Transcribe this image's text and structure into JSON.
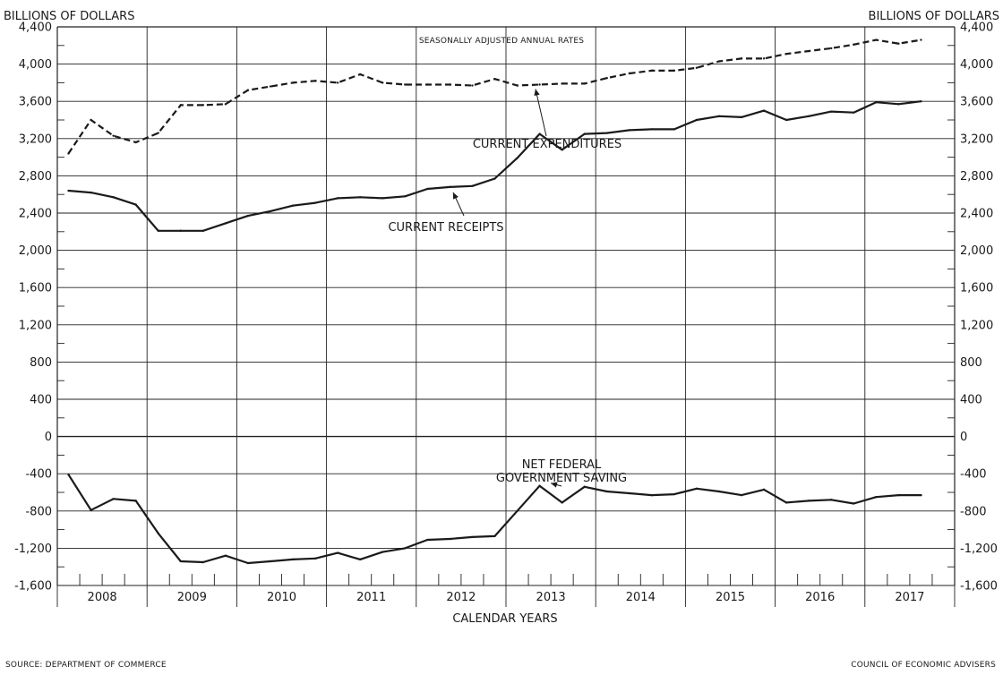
{
  "chart_data": {
    "type": "line",
    "left_axis_title": "BILLIONS OF DOLLARS",
    "right_axis_title": "BILLIONS OF DOLLARS",
    "note": "SEASONALLY ADJUSTED ANNUAL RATES",
    "xlabel": "CALENDAR YEARS",
    "source": "SOURCE: DEPARTMENT OF COMMERCE",
    "credit": "COUNCIL OF ECONOMIC ADVISERS",
    "ylim": [
      -1600,
      4400
    ],
    "y_ticks": [
      4400,
      4000,
      3600,
      3200,
      2800,
      2400,
      2000,
      1600,
      1200,
      800,
      400,
      0,
      -400,
      -800,
      -1200,
      -1600
    ],
    "y_tick_labels": [
      "4,400",
      "4,000",
      "3,600",
      "3,200",
      "2,800",
      "2,400",
      "2,000",
      "1,600",
      "1,200",
      "800",
      "400",
      "0",
      "-400",
      "-800",
      "-1,200",
      "-1,600"
    ],
    "years": [
      "2008",
      "2009",
      "2010",
      "2011",
      "2012",
      "2013",
      "2014",
      "2015",
      "2016",
      "2017"
    ],
    "x": [
      "2008 Q1",
      "2008 Q2",
      "2008 Q3",
      "2008 Q4",
      "2009 Q1",
      "2009 Q2",
      "2009 Q3",
      "2009 Q4",
      "2010 Q1",
      "2010 Q2",
      "2010 Q3",
      "2010 Q4",
      "2011 Q1",
      "2011 Q2",
      "2011 Q3",
      "2011 Q4",
      "2012 Q1",
      "2012 Q2",
      "2012 Q3",
      "2012 Q4",
      "2013 Q1",
      "2013 Q2",
      "2013 Q3",
      "2013 Q4",
      "2014 Q1",
      "2014 Q2",
      "2014 Q3",
      "2014 Q4",
      "2015 Q1",
      "2015 Q2",
      "2015 Q3",
      "2015 Q4",
      "2016 Q1",
      "2016 Q2",
      "2016 Q3",
      "2016 Q4",
      "2017 Q1",
      "2017 Q2",
      "2017 Q3"
    ],
    "series": [
      {
        "name": "CURRENT EXPENDITURES",
        "style": "dashed",
        "values": [
          3040,
          3400,
          3230,
          3160,
          3260,
          3560,
          3560,
          3570,
          3720,
          3760,
          3800,
          3820,
          3800,
          3890,
          3800,
          3780,
          3780,
          3780,
          3770,
          3840,
          3770,
          3780,
          3790,
          3790,
          3850,
          3900,
          3930,
          3930,
          3960,
          4030,
          4060,
          4060,
          4110,
          4140,
          4170,
          4210,
          4260,
          4220,
          4260
        ]
      },
      {
        "name": "CURRENT RECEIPTS",
        "style": "solid",
        "values": [
          2640,
          2620,
          2570,
          2490,
          2210,
          2210,
          2210,
          2290,
          2370,
          2420,
          2480,
          2510,
          2560,
          2570,
          2560,
          2580,
          2660,
          2680,
          2690,
          2770,
          2990,
          3250,
          3080,
          3250,
          3260,
          3290,
          3300,
          3300,
          3400,
          3440,
          3430,
          3500,
          3400,
          3440,
          3490,
          3480,
          3590,
          3570,
          3600
        ]
      },
      {
        "name": "NET FEDERAL GOVERNMENT SAVING",
        "label_lines": [
          "NET FEDERAL",
          "GOVERNMENT SAVING"
        ],
        "style": "solid",
        "values": [
          -410,
          -790,
          -670,
          -690,
          -1040,
          -1340,
          -1350,
          -1280,
          -1360,
          -1340,
          -1320,
          -1310,
          -1250,
          -1320,
          -1240,
          -1200,
          -1110,
          -1100,
          -1080,
          -1070,
          -800,
          -530,
          -710,
          -540,
          -590,
          -610,
          -630,
          -620,
          -560,
          -590,
          -630,
          -570,
          -710,
          -690,
          -680,
          -720,
          -650,
          -630,
          -630
        ]
      }
    ],
    "grid": true
  }
}
